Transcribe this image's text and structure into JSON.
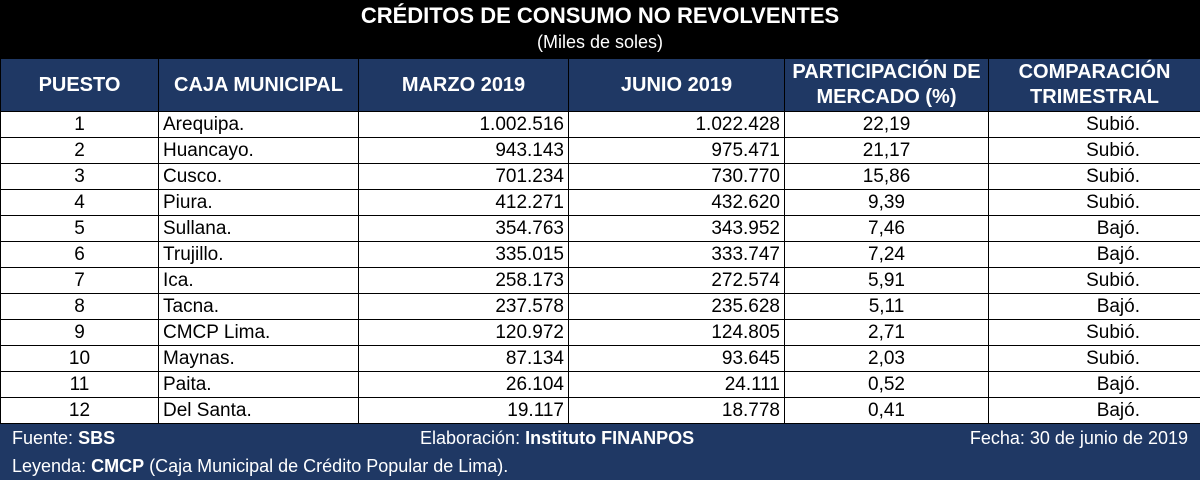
{
  "header": {
    "title": "CRÉDITOS DE CONSUMO NO REVOLVENTES",
    "subtitle": "(Miles de soles)"
  },
  "columns": {
    "puesto": "PUESTO",
    "caja": "CAJA MUNICIPAL",
    "marzo": "MARZO 2019",
    "junio": "JUNIO 2019",
    "participacion_1": "PARTICIPACIÓN DE",
    "participacion_2": "MERCADO (%)",
    "comparacion_1": "COMPARACIÓN",
    "comparacion_2": "TRIMESTRAL"
  },
  "rows": [
    {
      "puesto": "1",
      "caja": "Arequipa.",
      "marzo": "1.002.516",
      "junio": "1.022.428",
      "participacion": "22,19",
      "comparacion": "Subió."
    },
    {
      "puesto": "2",
      "caja": "Huancayo.",
      "marzo": "943.143",
      "junio": "975.471",
      "participacion": "21,17",
      "comparacion": "Subió."
    },
    {
      "puesto": "3",
      "caja": "Cusco.",
      "marzo": "701.234",
      "junio": "730.770",
      "participacion": "15,86",
      "comparacion": "Subió."
    },
    {
      "puesto": "4",
      "caja": "Piura.",
      "marzo": "412.271",
      "junio": "432.620",
      "participacion": "9,39",
      "comparacion": "Subió."
    },
    {
      "puesto": "5",
      "caja": "Sullana.",
      "marzo": "354.763",
      "junio": "343.952",
      "participacion": "7,46",
      "comparacion": "Bajó."
    },
    {
      "puesto": "6",
      "caja": "Trujillo.",
      "marzo": "335.015",
      "junio": "333.747",
      "participacion": "7,24",
      "comparacion": "Bajó."
    },
    {
      "puesto": "7",
      "caja": "Ica.",
      "marzo": "258.173",
      "junio": "272.574",
      "participacion": "5,91",
      "comparacion": "Subió."
    },
    {
      "puesto": "8",
      "caja": "Tacna.",
      "marzo": "237.578",
      "junio": "235.628",
      "participacion": "5,11",
      "comparacion": "Bajó."
    },
    {
      "puesto": "9",
      "caja": "CMCP Lima.",
      "marzo": "120.972",
      "junio": "124.805",
      "participacion": "2,71",
      "comparacion": "Subió."
    },
    {
      "puesto": "10",
      "caja": "Maynas.",
      "marzo": "87.134",
      "junio": "93.645",
      "participacion": "2,03",
      "comparacion": "Subió."
    },
    {
      "puesto": "11",
      "caja": "Paita.",
      "marzo": "26.104",
      "junio": "24.111",
      "participacion": "0,52",
      "comparacion": "Bajó."
    },
    {
      "puesto": "12",
      "caja": "Del Santa.",
      "marzo": "19.117",
      "junio": "18.778",
      "participacion": "0,41",
      "comparacion": "Bajó."
    }
  ],
  "footer": {
    "fuente_label": "Fuente:",
    "fuente_value": "SBS",
    "elaboracion_label": "Elaboración:",
    "elaboracion_value": "Instituto FINANPOS",
    "fecha": "Fecha: 30 de junio de 2019",
    "leyenda_label": "Leyenda:",
    "leyenda_value": "CMCP",
    "leyenda_text": "(Caja Municipal de Crédito Popular de Lima)."
  },
  "colors": {
    "title_bg": "#000000",
    "header_bg": "#1f3864",
    "header_text": "#ffffff"
  }
}
